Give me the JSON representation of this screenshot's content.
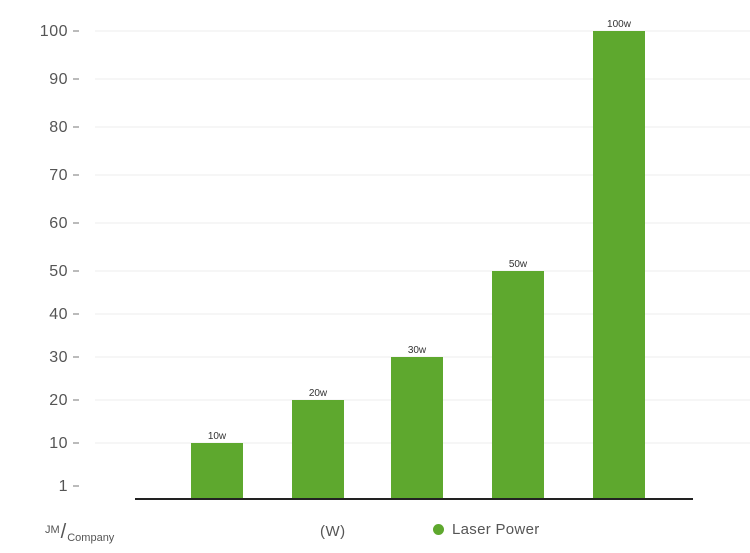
{
  "chart_data": {
    "type": "bar",
    "categories": [
      "10w",
      "20w",
      "30w",
      "50w",
      "100w"
    ],
    "values": [
      10,
      20,
      30,
      50,
      100
    ],
    "data_labels": [
      "10w",
      "20w",
      "30w",
      "50w",
      "100w"
    ],
    "y_ticks": [
      "1",
      "10",
      "20",
      "30",
      "40",
      "50",
      "60",
      "70",
      "80",
      "90",
      "100"
    ],
    "y_tick_values": [
      1,
      10,
      20,
      30,
      40,
      50,
      60,
      70,
      80,
      90,
      100
    ],
    "ylim": [
      0,
      100
    ],
    "xlabel": "(W)",
    "series": [
      {
        "name": "Laser Power",
        "values": [
          10,
          20,
          30,
          50,
          100
        ]
      }
    ],
    "legend_position": "bottom",
    "grid": true,
    "bar_color": "#5ea82e",
    "grid_color": "#eeeeee",
    "axis_color": "#222222"
  },
  "footer": {
    "company_prefix": "JM",
    "company_slash": "/",
    "company_name": "Company"
  }
}
